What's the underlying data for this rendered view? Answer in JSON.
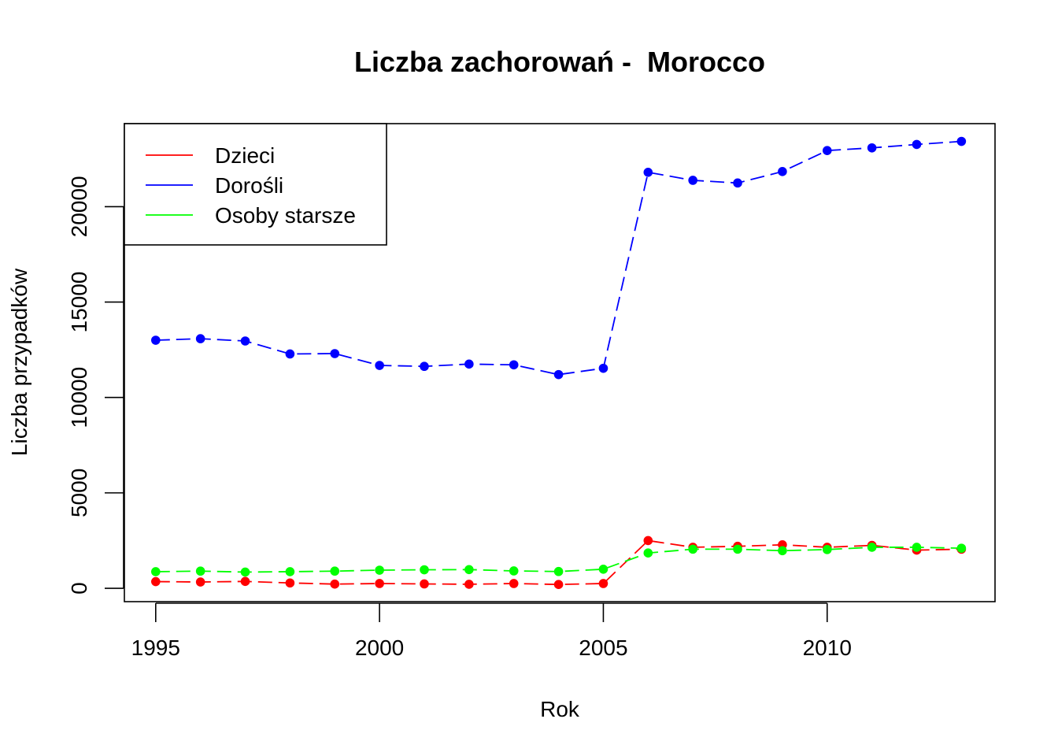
{
  "chart_data": {
    "type": "line",
    "title": "Liczba zachorowań -  Morocco",
    "xlabel": "Rok",
    "ylabel": "Liczba przypadków",
    "xlim": [
      1994.3,
      2013.75
    ],
    "ylim": [
      -700,
      24350
    ],
    "x_ticks": [
      1995,
      2000,
      2005,
      2010
    ],
    "y_ticks": [
      0,
      5000,
      10000,
      15000,
      20000
    ],
    "grid": false,
    "legend_position": "top-left",
    "line_style": "dashed",
    "x": [
      1995,
      1996,
      1997,
      1998,
      1999,
      2000,
      2001,
      2002,
      2003,
      2004,
      2005,
      2006,
      2007,
      2008,
      2009,
      2010,
      2011,
      2012,
      2013
    ],
    "series": [
      {
        "name": "Dzieci",
        "color": "#ff0000",
        "values": [
          350,
          330,
          360,
          280,
          220,
          250,
          230,
          210,
          250,
          200,
          250,
          2500,
          2150,
          2200,
          2280,
          2150,
          2250,
          2000,
          2050
        ]
      },
      {
        "name": "Dorośli",
        "color": "#0000ff",
        "values": [
          13000,
          13080,
          12960,
          12280,
          12300,
          11680,
          11630,
          11750,
          11710,
          11200,
          11530,
          21800,
          21380,
          21240,
          21840,
          22940,
          23080,
          23260,
          23420
        ]
      },
      {
        "name": "Osoby starsze",
        "color": "#00ff00",
        "values": [
          870,
          900,
          850,
          870,
          900,
          950,
          970,
          980,
          910,
          880,
          1000,
          1850,
          2050,
          2050,
          1970,
          2030,
          2150,
          2150,
          2100
        ]
      }
    ]
  }
}
